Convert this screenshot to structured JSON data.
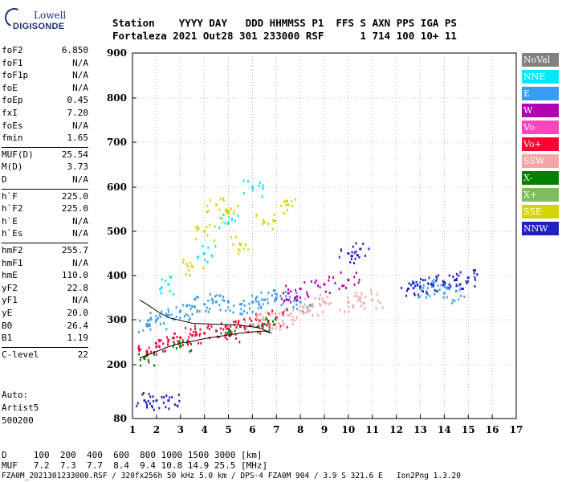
{
  "logo": {
    "top": "Lowell",
    "bottom": "DIGISONDE"
  },
  "header": {
    "row1": "Station    YYYY DAY   DDD HHMMSS P1  FFS S AXN PPS IGA PS",
    "row2": "Fortaleza 2021 Out28 301 233000 RSF      1 714 100 10+ 11"
  },
  "params": [
    {
      "name": "foF2",
      "value": "6.850"
    },
    {
      "name": "foF1",
      "value": "N/A"
    },
    {
      "name": "foF1p",
      "value": "N/A"
    },
    {
      "name": "foE",
      "value": "N/A"
    },
    {
      "name": "foEp",
      "value": "0.45"
    },
    {
      "name": "fxI",
      "value": "7.20"
    },
    {
      "name": "foEs",
      "value": "N/A"
    },
    {
      "name": "fmin",
      "value": "1.65"
    },
    {
      "name": "MUF(D)",
      "value": "25.54"
    },
    {
      "name": "M(D)",
      "value": "3.73"
    },
    {
      "name": "D",
      "value": "N/A"
    },
    {
      "name": "h`F",
      "value": "225.0"
    },
    {
      "name": "h`F2",
      "value": "225.0"
    },
    {
      "name": "h`E",
      "value": "N/A"
    },
    {
      "name": "h`Es",
      "value": "N/A"
    },
    {
      "name": "hmF2",
      "value": "255.7"
    },
    {
      "name": "hmF1",
      "value": "N/A"
    },
    {
      "name": "hmE",
      "value": "110.0"
    },
    {
      "name": "yF2",
      "value": "22.8"
    },
    {
      "name": "yF1",
      "value": "N/A"
    },
    {
      "name": "yE",
      "value": "20.0"
    },
    {
      "name": "B0",
      "value": "26.4"
    },
    {
      "name": "B1",
      "value": "1.19"
    },
    {
      "name": "C-level",
      "value": "22"
    }
  ],
  "autoscale": {
    "line1": "Auto:",
    "line2": "Artist5",
    "line3": "500200"
  },
  "legend": [
    {
      "label": "NoVal",
      "color": "#808080"
    },
    {
      "label": "NNE",
      "color": "#00e6ff"
    },
    {
      "label": "E",
      "color": "#3a9cf0"
    },
    {
      "label": "W",
      "color": "#b000b0"
    },
    {
      "label": "Vo-",
      "color": "#ff44c0"
    },
    {
      "label": "Vo+",
      "color": "#ff0033"
    },
    {
      "label": "SSW",
      "color": "#f4a6a6"
    },
    {
      "label": "X-",
      "color": "#008000"
    },
    {
      "label": "X+",
      "color": "#7dbd5a"
    },
    {
      "label": "SSE",
      "color": "#d4d400"
    },
    {
      "label": "NNW",
      "color": "#2020c8"
    }
  ],
  "chart_data": {
    "type": "scatter",
    "xlim": [
      1,
      17
    ],
    "ylim": [
      80,
      900
    ],
    "x_ticks": [
      "1",
      "2",
      "3",
      "4",
      "5",
      "6",
      "7",
      "8",
      "9",
      "10",
      "11",
      "12",
      "13",
      "14",
      "15",
      "16",
      "17"
    ],
    "y_ticks": [
      "80",
      "200",
      "300",
      "400",
      "500",
      "600",
      "700",
      "800",
      "900"
    ],
    "series": [
      {
        "name": "E",
        "x": [
          1.6,
          2.0,
          2.5,
          3.0,
          3.5,
          4.0,
          4.5,
          5.0,
          5.5,
          6.0,
          6.5,
          7.0,
          7.5,
          8.0,
          13.0,
          13.5,
          14.0,
          14.5
        ],
        "y": [
          290,
          300,
          310,
          320,
          330,
          335,
          340,
          340,
          335,
          340,
          345,
          350,
          345,
          340,
          370,
          375,
          360,
          365
        ]
      },
      {
        "name": "Vo+",
        "x": [
          1.6,
          2.0,
          2.5,
          3.0,
          3.5,
          4.0,
          4.5,
          5.0,
          5.5,
          6.0,
          6.5,
          7.0
        ],
        "y": [
          230,
          240,
          255,
          260,
          265,
          270,
          275,
          280,
          285,
          290,
          300,
          305
        ]
      },
      {
        "name": "SSW",
        "x": [
          6.0,
          6.5,
          7.0,
          7.5,
          8.0,
          8.5,
          9.0,
          10.0,
          10.5,
          11.0
        ],
        "y": [
          290,
          300,
          300,
          310,
          320,
          330,
          340,
          340,
          350,
          345
        ]
      },
      {
        "name": "W",
        "x": [
          7.5,
          8.0,
          9.0,
          10.0
        ],
        "y": [
          360,
          370,
          380,
          390
        ]
      },
      {
        "name": "NNW",
        "x": [
          1.5,
          2.0,
          2.5,
          12.5,
          13.0,
          13.5,
          14.0,
          14.5,
          15.0,
          10.0,
          10.5
        ],
        "y": [
          120,
          120,
          120,
          370,
          375,
          380,
          385,
          390,
          395,
          450,
          460
        ]
      },
      {
        "name": "SSE",
        "x": [
          3.5,
          4.0,
          4.5,
          5.0,
          5.5,
          6.5,
          7.5
        ],
        "y": [
          420,
          500,
          560,
          540,
          470,
          520,
          560
        ]
      },
      {
        "name": "X-",
        "x": [
          1.6,
          3.0,
          5.0,
          6.5
        ],
        "y": [
          220,
          240,
          270,
          290
        ]
      },
      {
        "name": "NNE",
        "x": [
          2.5,
          4.0,
          5.0,
          6.0
        ],
        "y": [
          380,
          450,
          520,
          600
        ]
      }
    ],
    "profile_curve": {
      "x": [
        1.3,
        1.8,
        2.5,
        3.0,
        3.5,
        4.0,
        4.5,
        5.0,
        5.5,
        6.0,
        6.5,
        6.8,
        6.3,
        5.5,
        4.5,
        3.5,
        2.5,
        2.0,
        1.6,
        1.3
      ],
      "y": [
        215,
        225,
        240,
        248,
        252,
        258,
        262,
        266,
        270,
        273,
        275,
        270,
        282,
        288,
        290,
        292,
        305,
        320,
        335,
        345
      ]
    }
  },
  "footer": {
    "line1": "D     100  200  400  600  800 1000 1500 3000 [km]",
    "line2": "MUF   7.2  7.3  7.7  8.4  9.4 10.8 14.9 25.5 [MHz]",
    "line3": "FZA0M_2021301233000.RSF / 320fx256h 50 kHz 5.0 km / DPS-4 FZA0M 904 / 3.9 S 321.6 E   Ion2Png 1.3.20"
  }
}
